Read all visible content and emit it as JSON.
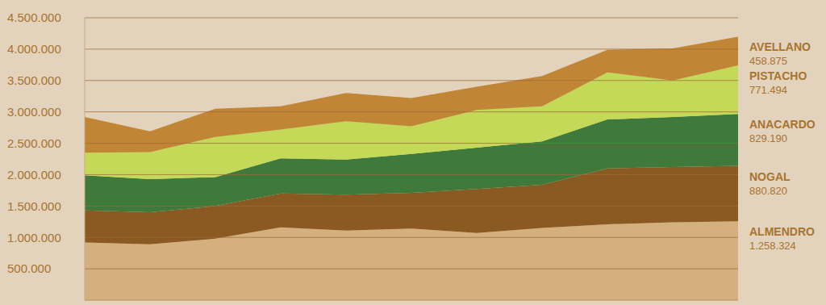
{
  "chart_data": {
    "type": "area",
    "stacked": true,
    "grid": true,
    "tick_labels": "y",
    "categories": [
      null,
      null,
      null,
      null,
      null,
      null,
      null,
      null,
      null,
      null,
      null
    ],
    "ylim": [
      0,
      4500000
    ],
    "yticks": [
      {
        "value": 500000,
        "label": "500.000"
      },
      {
        "value": 1000000,
        "label": "1.000.000"
      },
      {
        "value": 1500000,
        "label": "1.500.000"
      },
      {
        "value": 2000000,
        "label": "2.000.000"
      },
      {
        "value": 2500000,
        "label": "2.500.000"
      },
      {
        "value": 3000000,
        "label": "3.000.000"
      },
      {
        "value": 3500000,
        "label": "3.500.000"
      },
      {
        "value": 4000000,
        "label": "4.000.000"
      },
      {
        "value": 4500000,
        "label": "4.500.000"
      }
    ],
    "series": [
      {
        "name": "ALMENDRO",
        "color": "#d4b07f",
        "values": [
          920000,
          890000,
          980000,
          1160000,
          1110000,
          1140000,
          1070000,
          1150000,
          1210000,
          1240000,
          1258324
        ],
        "value_labels": [
          null,
          null,
          null,
          null,
          null,
          null,
          null,
          null,
          null,
          null,
          "1.258.324"
        ]
      },
      {
        "name": "NOGAL",
        "color": "#8b5a22",
        "values": [
          510000,
          510000,
          520000,
          540000,
          570000,
          570000,
          700000,
          690000,
          890000,
          880000,
          880820
        ],
        "value_labels": [
          null,
          null,
          null,
          null,
          null,
          null,
          null,
          null,
          null,
          null,
          "880.820"
        ]
      },
      {
        "name": "ANACARDO",
        "color": "#3f7a3c",
        "values": [
          560000,
          530000,
          460000,
          560000,
          560000,
          620000,
          660000,
          690000,
          780000,
          800000,
          829190
        ],
        "value_labels": [
          null,
          null,
          null,
          null,
          null,
          null,
          null,
          null,
          null,
          null,
          "829.190"
        ]
      },
      {
        "name": "PISTACHO",
        "color": "#c4d957",
        "values": [
          360000,
          430000,
          640000,
          460000,
          610000,
          440000,
          600000,
          560000,
          750000,
          580000,
          771494
        ],
        "value_labels": [
          null,
          null,
          null,
          null,
          null,
          null,
          null,
          null,
          null,
          null,
          "771.494"
        ]
      },
      {
        "name": "AVELLANO",
        "color": "#c08535",
        "values": [
          570000,
          330000,
          450000,
          370000,
          450000,
          450000,
          370000,
          480000,
          360000,
          510000,
          458875
        ],
        "value_labels": [
          null,
          null,
          null,
          null,
          null,
          null,
          null,
          null,
          null,
          null,
          "458.875"
        ]
      }
    ]
  }
}
